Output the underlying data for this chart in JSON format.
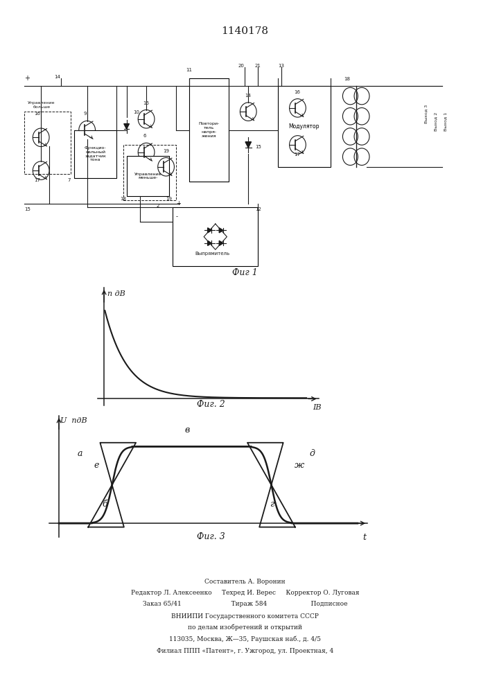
{
  "title": "1140178",
  "fig1_caption": "Фиг 1",
  "fig2_caption": "Фиг. 2",
  "fig3_caption": "Фиг. 3",
  "fig2_ylabel": "п дВ",
  "fig2_xlabel": "IВ",
  "fig3_ylabel": "U  пдВ",
  "fig3_xlabel": "t",
  "footer_lines": [
    "Составитель А. Воронин",
    "Редактор Л. Алексеенко     Техред И. Верес     Корректор О. Луговая",
    "Заказ 65/41                         Тираж 584                      Подписное",
    "ВНИИПИ Государственного комитета СССР",
    "по делам изобретений и открытий",
    "113035, Москва, Ж—35, Раушская наб., д. 4/5",
    "Филиал ППП «Патент», г. Ужгород, ул. Проектная, 4"
  ],
  "bg_color": "#ffffff",
  "line_color": "#1a1a1a"
}
